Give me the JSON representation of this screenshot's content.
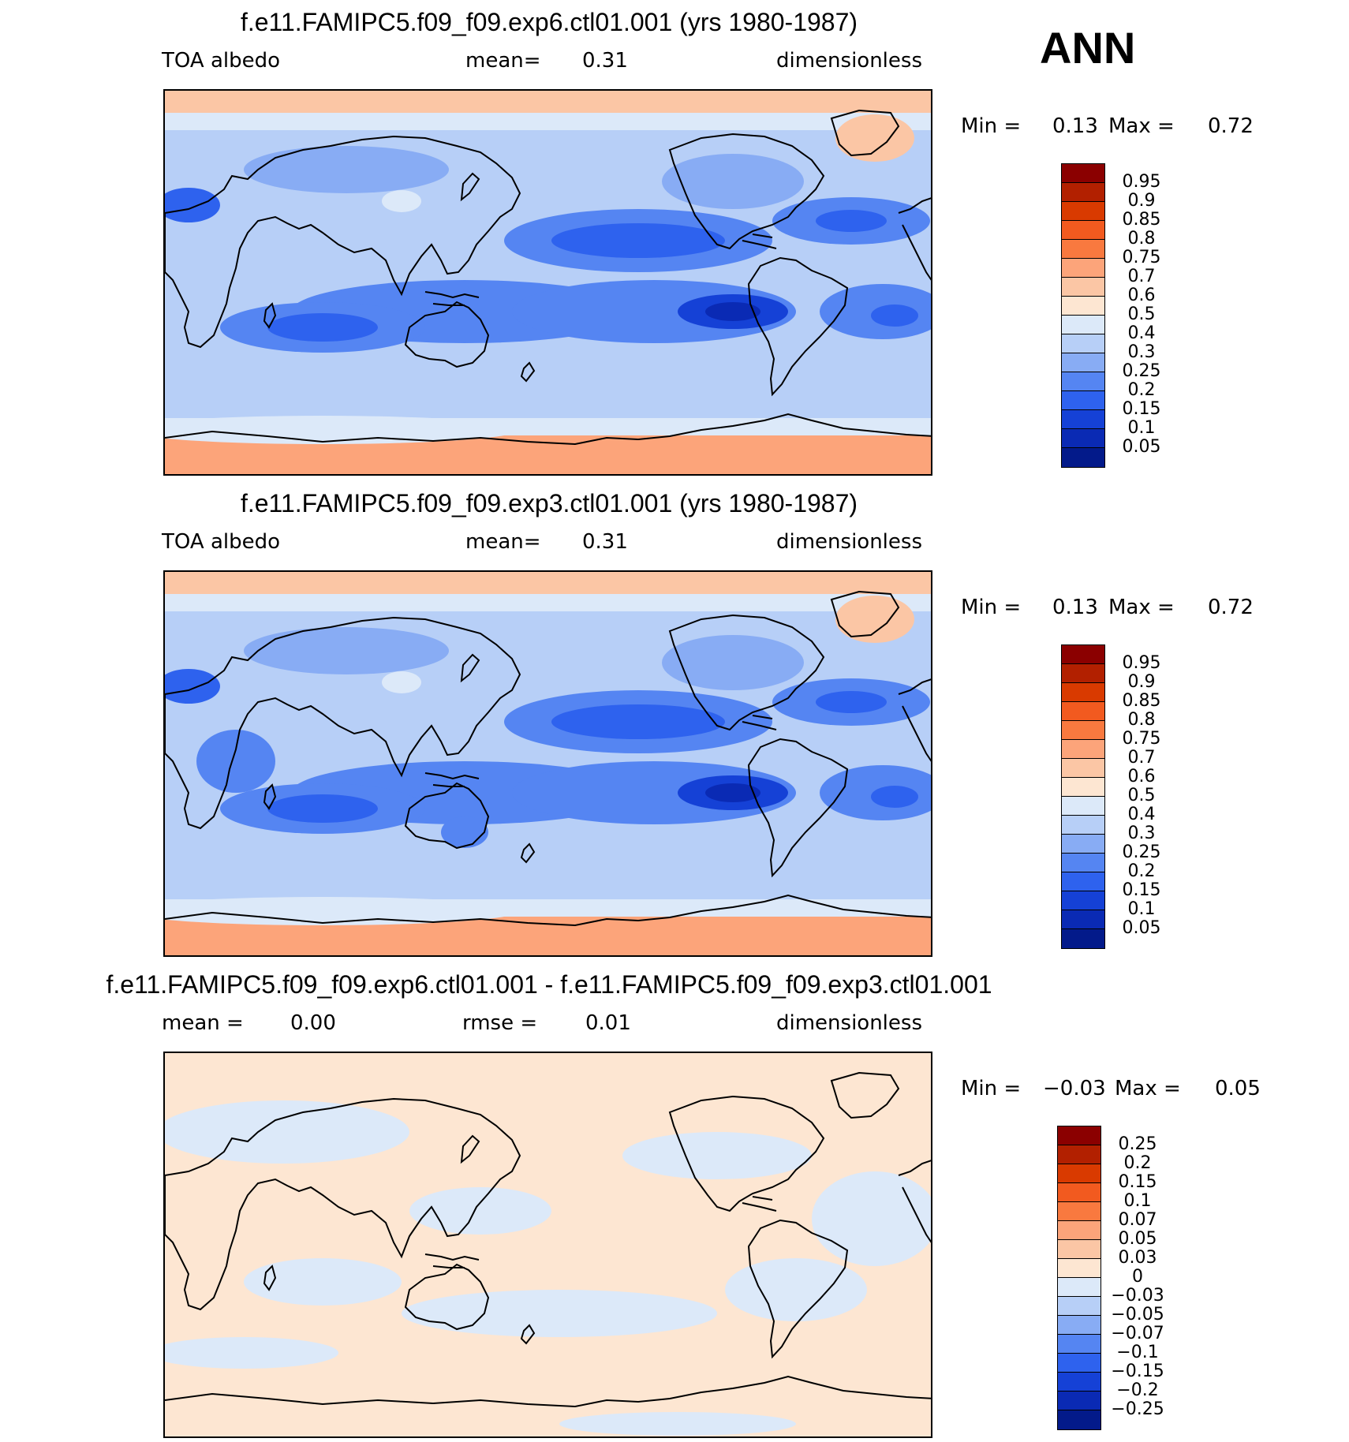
{
  "season": "ANN",
  "panels": [
    {
      "title": "f.e11.FAMIPC5.f09_f09.exp6.ctl01.001 (yrs 1980-1987)",
      "sub_left": "TOA  albedo",
      "sub_mid_label": "mean=",
      "sub_mid_value": "0.31",
      "sub_right": "dimensionless",
      "min_label": "Min  =",
      "min_value": "0.13",
      "max_label": "Max  =",
      "max_value": "0.72",
      "colorbar": {
        "labels": [
          "0.95",
          "0.9",
          "0.85",
          "0.8",
          "0.75",
          "0.7",
          "0.6",
          "0.5",
          "0.4",
          "0.3",
          "0.25",
          "0.2",
          "0.15",
          "0.1",
          "0.05"
        ],
        "colors": [
          "#8b0000",
          "#b22000",
          "#d93a00",
          "#f25a1f",
          "#f9793f",
          "#fca47a",
          "#fbc6a5",
          "#fde6d2",
          "#dce9f9",
          "#b7cff7",
          "#88acf4",
          "#5585f2",
          "#2e62ee",
          "#1541d6",
          "#0a2ab4",
          "#031a8a"
        ]
      }
    },
    {
      "title": "f.e11.FAMIPC5.f09_f09.exp3.ctl01.001 (yrs 1980-1987)",
      "sub_left": "TOA  albedo",
      "sub_mid_label": "mean=",
      "sub_mid_value": "0.31",
      "sub_right": "dimensionless",
      "min_label": "Min  =",
      "min_value": "0.13",
      "max_label": "Max  =",
      "max_value": "0.72",
      "colorbar": {
        "labels": [
          "0.95",
          "0.9",
          "0.85",
          "0.8",
          "0.75",
          "0.7",
          "0.6",
          "0.5",
          "0.4",
          "0.3",
          "0.25",
          "0.2",
          "0.15",
          "0.1",
          "0.05"
        ],
        "colors": [
          "#8b0000",
          "#b22000",
          "#d93a00",
          "#f25a1f",
          "#f9793f",
          "#fca47a",
          "#fbc6a5",
          "#fde6d2",
          "#dce9f9",
          "#b7cff7",
          "#88acf4",
          "#5585f2",
          "#2e62ee",
          "#1541d6",
          "#0a2ab4",
          "#031a8a"
        ]
      }
    },
    {
      "title": "f.e11.FAMIPC5.f09_f09.exp6.ctl01.001 - f.e11.FAMIPC5.f09_f09.exp3.ctl01.001",
      "sub_left": "mean  =",
      "sub_left_value": "0.00",
      "sub_mid_label": "rmse  =",
      "sub_mid_value": "0.01",
      "sub_right": "dimensionless",
      "min_label": "Min  =",
      "min_value": "−0.03",
      "max_label": "Max  =",
      "max_value": "0.05",
      "colorbar": {
        "labels": [
          "0.25",
          "0.2",
          "0.15",
          "0.1",
          "0.07",
          "0.05",
          "0.03",
          "0",
          "−0.03",
          "−0.05",
          "−0.07",
          "−0.1",
          "−0.15",
          "−0.2",
          "−0.25"
        ],
        "colors": [
          "#8b0000",
          "#b22000",
          "#d93a00",
          "#f25a1f",
          "#f9793f",
          "#fca47a",
          "#fbc6a5",
          "#fde6d2",
          "#dce9f9",
          "#b7cff7",
          "#88acf4",
          "#5585f2",
          "#2e62ee",
          "#1541d6",
          "#0a2ab4",
          "#031a8a"
        ]
      }
    }
  ]
}
